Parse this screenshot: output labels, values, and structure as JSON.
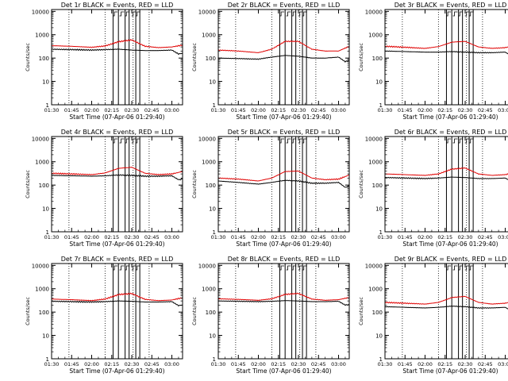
{
  "figure": {
    "xlabel": "Start Time (07-Apr-06 01:29:40)",
    "ylabel": "Counts/sec"
  },
  "colors": {
    "events": "#000000",
    "lld": "#e00000",
    "frame": "#000000",
    "dotted": "#000000"
  },
  "chart_data": [
    {
      "title": "Det 1r BLACK = Events, RED = LLD",
      "type": "line",
      "yscale": "log",
      "ylim": [
        1,
        12000
      ],
      "xlim": [
        "01:30",
        "03:08"
      ],
      "xticks": [
        "01:30",
        "01:45",
        "02:00",
        "02:15",
        "02:30",
        "02:45",
        "03:00"
      ],
      "yticks": [
        "1",
        "10",
        "100",
        "1000",
        "10000"
      ],
      "series": [
        {
          "name": "BLACK = Events",
          "x": [
            "01:30",
            "01:45",
            "02:00",
            "02:10",
            "02:20",
            "02:30",
            "02:40",
            "02:50",
            "03:00",
            "03:05",
            "03:08"
          ],
          "values": [
            240,
            230,
            220,
            230,
            240,
            220,
            210,
            210,
            220,
            150,
            160
          ]
        },
        {
          "name": "RED = LLD",
          "x": [
            "01:30",
            "01:45",
            "02:00",
            "02:10",
            "02:20",
            "02:30",
            "02:40",
            "02:50",
            "03:00",
            "03:08"
          ],
          "values": [
            340,
            320,
            290,
            330,
            500,
            600,
            320,
            280,
            300,
            360
          ]
        }
      ]
    },
    {
      "title": "Det 2r BLACK = Events, RED = LLD",
      "type": "line",
      "yscale": "log",
      "ylim": [
        1,
        12000
      ],
      "xlim": [
        "01:30",
        "03:08"
      ],
      "xticks": [
        "01:30",
        "01:45",
        "02:00",
        "02:15",
        "02:30",
        "02:45",
        "03:00"
      ],
      "yticks": [
        "1",
        "10",
        "100",
        "1000",
        "10000"
      ],
      "series": [
        {
          "name": "BLACK = Events",
          "x": [
            "01:30",
            "01:45",
            "02:00",
            "02:10",
            "02:20",
            "02:30",
            "02:40",
            "02:50",
            "03:00",
            "03:05",
            "03:08"
          ],
          "values": [
            100,
            95,
            90,
            110,
            130,
            120,
            100,
            100,
            110,
            70,
            80
          ]
        },
        {
          "name": "RED = LLD",
          "x": [
            "01:30",
            "01:45",
            "02:00",
            "02:10",
            "02:20",
            "02:30",
            "02:40",
            "02:50",
            "03:00",
            "03:08"
          ],
          "values": [
            220,
            200,
            170,
            240,
            520,
            520,
            240,
            200,
            200,
            320
          ]
        }
      ]
    },
    {
      "title": "Det 3r BLACK = Events, RED = LLD",
      "type": "line",
      "yscale": "log",
      "ylim": [
        1,
        12000
      ],
      "xlim": [
        "01:30",
        "03:08"
      ],
      "xticks": [
        "01:30",
        "01:45",
        "02:00",
        "02:15",
        "02:30",
        "02:45",
        "03:00"
      ],
      "yticks": [
        "1",
        "10",
        "100",
        "1000",
        "10000"
      ],
      "series": [
        {
          "name": "BLACK = Events",
          "x": [
            "01:30",
            "01:45",
            "02:00",
            "02:10",
            "02:20",
            "02:30",
            "02:40",
            "02:50",
            "03:00",
            "03:05",
            "03:08"
          ],
          "values": [
            200,
            190,
            180,
            180,
            190,
            180,
            170,
            170,
            180,
            120,
            130
          ]
        },
        {
          "name": "RED = LLD",
          "x": [
            "01:30",
            "01:45",
            "02:00",
            "02:10",
            "02:20",
            "02:30",
            "02:40",
            "02:50",
            "03:00",
            "03:08"
          ],
          "values": [
            320,
            290,
            260,
            310,
            480,
            520,
            300,
            260,
            280,
            340
          ]
        }
      ]
    },
    {
      "title": "Det 4r BLACK = Events, RED = LLD",
      "type": "line",
      "yscale": "log",
      "ylim": [
        1,
        12000
      ],
      "xlim": [
        "01:30",
        "03:08"
      ],
      "xticks": [
        "01:30",
        "01:45",
        "02:00",
        "02:15",
        "02:30",
        "02:45",
        "03:00"
      ],
      "yticks": [
        "1",
        "10",
        "100",
        "1000",
        "10000"
      ],
      "series": [
        {
          "name": "BLACK = Events",
          "x": [
            "01:30",
            "01:45",
            "02:00",
            "02:10",
            "02:20",
            "02:30",
            "02:40",
            "02:50",
            "03:00",
            "03:05",
            "03:08"
          ],
          "values": [
            260,
            250,
            240,
            250,
            270,
            260,
            240,
            240,
            250,
            170,
            180
          ]
        },
        {
          "name": "RED = LLD",
          "x": [
            "01:30",
            "01:45",
            "02:00",
            "02:10",
            "02:20",
            "02:30",
            "02:40",
            "02:50",
            "03:00",
            "03:08"
          ],
          "values": [
            320,
            300,
            280,
            330,
            520,
            580,
            320,
            280,
            300,
            380
          ]
        }
      ]
    },
    {
      "title": "Det 5r BLACK = Events, RED = LLD",
      "type": "line",
      "yscale": "log",
      "ylim": [
        1,
        12000
      ],
      "xlim": [
        "01:30",
        "03:08"
      ],
      "xticks": [
        "01:30",
        "01:45",
        "02:00",
        "02:15",
        "02:30",
        "02:45",
        "03:00"
      ],
      "yticks": [
        "1",
        "10",
        "100",
        "1000",
        "10000"
      ],
      "series": [
        {
          "name": "BLACK = Events",
          "x": [
            "01:30",
            "01:45",
            "02:00",
            "02:10",
            "02:20",
            "02:30",
            "02:40",
            "02:50",
            "03:00",
            "03:05",
            "03:08"
          ],
          "values": [
            150,
            130,
            110,
            130,
            160,
            150,
            120,
            120,
            130,
            80,
            90
          ]
        },
        {
          "name": "RED = LLD",
          "x": [
            "01:30",
            "01:45",
            "02:00",
            "02:10",
            "02:20",
            "02:30",
            "02:40",
            "02:50",
            "03:00",
            "03:08"
          ],
          "values": [
            200,
            180,
            150,
            200,
            380,
            400,
            200,
            170,
            180,
            270
          ]
        }
      ]
    },
    {
      "title": "Det 6r BLACK = Events, RED = LLD",
      "type": "line",
      "yscale": "log",
      "ylim": [
        1,
        12000
      ],
      "xlim": [
        "01:30",
        "03:08"
      ],
      "xticks": [
        "01:30",
        "01:45",
        "02:00",
        "02:15",
        "02:30",
        "02:45",
        "03:00"
      ],
      "yticks": [
        "1",
        "10",
        "100",
        "1000",
        "10000"
      ],
      "series": [
        {
          "name": "BLACK = Events",
          "x": [
            "01:30",
            "01:45",
            "02:00",
            "02:10",
            "02:20",
            "02:30",
            "02:40",
            "02:50",
            "03:00",
            "03:05",
            "03:08"
          ],
          "values": [
            210,
            200,
            190,
            200,
            220,
            210,
            190,
            190,
            200,
            140,
            150
          ]
        },
        {
          "name": "RED = LLD",
          "x": [
            "01:30",
            "01:45",
            "02:00",
            "02:10",
            "02:20",
            "02:30",
            "02:40",
            "02:50",
            "03:00",
            "03:08"
          ],
          "values": [
            300,
            280,
            260,
            300,
            480,
            540,
            300,
            260,
            280,
            340
          ]
        }
      ]
    },
    {
      "title": "Det 7r BLACK = Events, RED = LLD",
      "type": "line",
      "yscale": "log",
      "ylim": [
        1,
        12000
      ],
      "xlim": [
        "01:30",
        "03:08"
      ],
      "xticks": [
        "01:30",
        "01:45",
        "02:00",
        "02:15",
        "02:30",
        "02:45",
        "03:00"
      ],
      "yticks": [
        "1",
        "10",
        "100",
        "1000",
        "10000"
      ],
      "series": [
        {
          "name": "BLACK = Events",
          "x": [
            "01:30",
            "01:45",
            "02:00",
            "02:10",
            "02:20",
            "02:30",
            "02:40",
            "02:50",
            "03:00",
            "03:05",
            "03:08"
          ],
          "values": [
            290,
            280,
            270,
            280,
            300,
            290,
            270,
            270,
            280,
            190,
            200
          ]
        },
        {
          "name": "RED = LLD",
          "x": [
            "01:30",
            "01:45",
            "02:00",
            "02:10",
            "02:20",
            "02:30",
            "02:40",
            "02:50",
            "03:00",
            "03:08"
          ],
          "values": [
            360,
            340,
            310,
            360,
            560,
            620,
            350,
            310,
            330,
            410
          ]
        }
      ]
    },
    {
      "title": "Det 8r BLACK = Events, RED = LLD",
      "type": "line",
      "yscale": "log",
      "ylim": [
        1,
        12000
      ],
      "xlim": [
        "01:30",
        "03:08"
      ],
      "xticks": [
        "01:30",
        "01:45",
        "02:00",
        "02:15",
        "02:30",
        "02:45",
        "03:00"
      ],
      "yticks": [
        "1",
        "10",
        "100",
        "1000",
        "10000"
      ],
      "series": [
        {
          "name": "BLACK = Events",
          "x": [
            "01:30",
            "01:45",
            "02:00",
            "02:10",
            "02:20",
            "02:30",
            "02:40",
            "02:50",
            "03:00",
            "03:05",
            "03:08"
          ],
          "values": [
            300,
            290,
            280,
            290,
            310,
            300,
            280,
            280,
            290,
            200,
            210
          ]
        },
        {
          "name": "RED = LLD",
          "x": [
            "01:30",
            "01:45",
            "02:00",
            "02:10",
            "02:20",
            "02:30",
            "02:40",
            "02:50",
            "03:00",
            "03:08"
          ],
          "values": [
            370,
            350,
            320,
            370,
            570,
            630,
            360,
            320,
            340,
            420
          ]
        }
      ]
    },
    {
      "title": "Det 9r BLACK = Events, RED = LLD",
      "type": "line",
      "yscale": "log",
      "ylim": [
        1,
        12000
      ],
      "xlim": [
        "01:30",
        "03:08"
      ],
      "xticks": [
        "01:30",
        "01:45",
        "02:00",
        "02:15",
        "02:30",
        "02:45",
        "03:00"
      ],
      "yticks": [
        "1",
        "10",
        "100",
        "1000",
        "10000"
      ],
      "series": [
        {
          "name": "BLACK = Events",
          "x": [
            "01:30",
            "01:45",
            "02:00",
            "02:10",
            "02:20",
            "02:30",
            "02:40",
            "02:50",
            "03:00",
            "03:05",
            "03:08"
          ],
          "values": [
            170,
            160,
            150,
            160,
            180,
            170,
            150,
            150,
            160,
            110,
            120
          ]
        },
        {
          "name": "RED = LLD",
          "x": [
            "01:30",
            "01:45",
            "02:00",
            "02:10",
            "02:20",
            "02:30",
            "02:40",
            "02:50",
            "03:00",
            "03:08"
          ],
          "values": [
            260,
            240,
            220,
            260,
            420,
            470,
            260,
            220,
            240,
            300
          ]
        }
      ]
    }
  ],
  "markers": {
    "dotted_times": [
      "01:43",
      "02:10",
      "02:31",
      "02:43"
    ],
    "vertical_times": [
      "02:16",
      "02:20",
      "02:25",
      "02:28",
      "02:33",
      "02:36"
    ],
    "step_times": [
      "02:17",
      "02:22",
      "02:26",
      "02:31",
      "02:34"
    ]
  }
}
